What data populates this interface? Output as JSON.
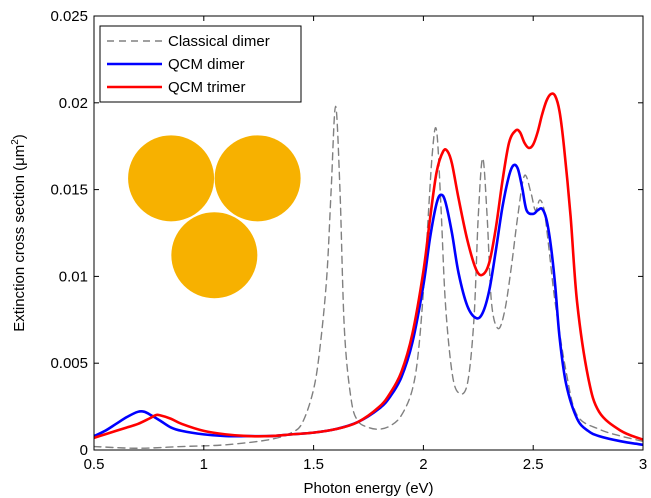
{
  "chart_data": {
    "type": "line",
    "xlabel": "Photon energy (eV)",
    "ylabel": {
      "prefix": "Extinction cross section (",
      "unit": "μm",
      "sup": "2",
      "suffix": ")"
    },
    "xlim": [
      0.5,
      3
    ],
    "ylim": [
      0,
      0.025
    ],
    "xticks": [
      0.5,
      1,
      1.5,
      2,
      2.5,
      3
    ],
    "xtick_labels": [
      "0.5",
      "1",
      "1.5",
      "2",
      "2.5",
      "3"
    ],
    "yticks": [
      0,
      0.005,
      0.01,
      0.015,
      0.02,
      0.025
    ],
    "ytick_labels": [
      "0",
      "0.005",
      "0.01",
      "0.015",
      "0.02",
      "0.025"
    ],
    "grid": false,
    "legend_position": "top-left",
    "series": [
      {
        "name": "Classical dimer",
        "color": "#808080",
        "dash": "dashed",
        "x": [
          0.5,
          0.7,
          0.9,
          1.1,
          1.3,
          1.4,
          1.45,
          1.5,
          1.53,
          1.56,
          1.58,
          1.6,
          1.62,
          1.64,
          1.67,
          1.7,
          1.75,
          1.8,
          1.85,
          1.9,
          1.95,
          1.98,
          2.01,
          2.04,
          2.06,
          2.08,
          2.1,
          2.13,
          2.16,
          2.2,
          2.23,
          2.25,
          2.27,
          2.29,
          2.31,
          2.34,
          2.37,
          2.4,
          2.43,
          2.46,
          2.49,
          2.51,
          2.53,
          2.55,
          2.57,
          2.6,
          2.65,
          2.7,
          2.8,
          2.9,
          3.0
        ],
        "values": [
          0.0002,
          0.0001,
          0.0002,
          0.0003,
          0.0006,
          0.001,
          0.0016,
          0.0035,
          0.006,
          0.01,
          0.015,
          0.0198,
          0.015,
          0.007,
          0.003,
          0.0017,
          0.0013,
          0.0012,
          0.0014,
          0.002,
          0.0035,
          0.006,
          0.011,
          0.017,
          0.0184,
          0.014,
          0.0085,
          0.0045,
          0.0033,
          0.0038,
          0.0075,
          0.0135,
          0.0168,
          0.0135,
          0.0085,
          0.007,
          0.008,
          0.0105,
          0.0135,
          0.0158,
          0.0148,
          0.0138,
          0.0144,
          0.0138,
          0.0118,
          0.0085,
          0.0045,
          0.002,
          0.0012,
          0.0008,
          0.0005
        ]
      },
      {
        "name": "QCM dimer",
        "color": "#0000ff",
        "dash": "solid",
        "x": [
          0.5,
          0.55,
          0.6,
          0.65,
          0.7,
          0.73,
          0.76,
          0.8,
          0.85,
          0.9,
          1.0,
          1.1,
          1.2,
          1.3,
          1.4,
          1.5,
          1.6,
          1.7,
          1.8,
          1.85,
          1.9,
          1.95,
          2.0,
          2.03,
          2.06,
          2.08,
          2.1,
          2.13,
          2.16,
          2.2,
          2.24,
          2.27,
          2.3,
          2.33,
          2.36,
          2.39,
          2.41,
          2.43,
          2.45,
          2.47,
          2.5,
          2.52,
          2.54,
          2.56,
          2.58,
          2.6,
          2.62,
          2.65,
          2.7,
          2.75,
          2.8,
          2.9,
          3.0
        ],
        "values": [
          0.0008,
          0.0011,
          0.0015,
          0.0019,
          0.0022,
          0.0022,
          0.002,
          0.0017,
          0.0013,
          0.0011,
          0.0009,
          0.0008,
          0.0008,
          0.0008,
          0.0009,
          0.001,
          0.0012,
          0.0016,
          0.0024,
          0.0031,
          0.0042,
          0.0062,
          0.0095,
          0.0122,
          0.0142,
          0.0147,
          0.0143,
          0.0125,
          0.0102,
          0.0083,
          0.0076,
          0.0079,
          0.0092,
          0.0115,
          0.014,
          0.0158,
          0.0164,
          0.0162,
          0.0151,
          0.0138,
          0.0136,
          0.0138,
          0.0139,
          0.0133,
          0.0118,
          0.0095,
          0.0065,
          0.0038,
          0.0018,
          0.0011,
          0.0008,
          0.0005,
          0.0003
        ]
      },
      {
        "name": "QCM trimer",
        "color": "#ff0000",
        "dash": "solid",
        "x": [
          0.5,
          0.55,
          0.6,
          0.65,
          0.7,
          0.75,
          0.78,
          0.8,
          0.85,
          0.9,
          1.0,
          1.1,
          1.2,
          1.3,
          1.4,
          1.5,
          1.6,
          1.7,
          1.8,
          1.85,
          1.9,
          1.95,
          2.0,
          2.03,
          2.06,
          2.09,
          2.11,
          2.13,
          2.16,
          2.2,
          2.24,
          2.27,
          2.3,
          2.33,
          2.36,
          2.39,
          2.42,
          2.44,
          2.46,
          2.48,
          2.5,
          2.52,
          2.54,
          2.56,
          2.58,
          2.6,
          2.62,
          2.64,
          2.67,
          2.7,
          2.75,
          2.8,
          2.9,
          3.0
        ],
        "values": [
          0.0007,
          0.0009,
          0.0011,
          0.0013,
          0.0015,
          0.0018,
          0.002,
          0.002,
          0.0018,
          0.0015,
          0.0011,
          0.0009,
          0.0008,
          0.0008,
          0.0009,
          0.001,
          0.0012,
          0.0016,
          0.0025,
          0.0033,
          0.0045,
          0.0067,
          0.0103,
          0.0133,
          0.016,
          0.0172,
          0.0172,
          0.0165,
          0.0145,
          0.0121,
          0.0104,
          0.0101,
          0.0108,
          0.0128,
          0.0155,
          0.0177,
          0.0184,
          0.0183,
          0.0177,
          0.0174,
          0.0176,
          0.0183,
          0.0193,
          0.0201,
          0.0205,
          0.0204,
          0.0195,
          0.0175,
          0.0135,
          0.0085,
          0.0042,
          0.0022,
          0.0011,
          0.0006
        ]
      }
    ]
  },
  "inset": {
    "description_icon": "three-nanosphere-trimer",
    "color": "#f7b100"
  }
}
